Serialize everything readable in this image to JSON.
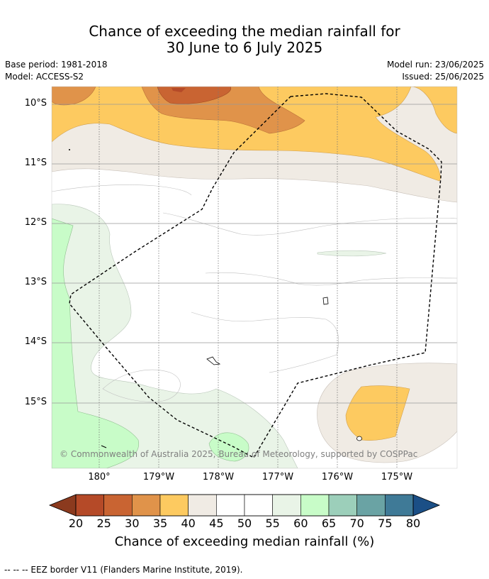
{
  "title_line1": "Chance of exceeding the median rainfall for",
  "title_line2": "30 June to 6 July 2025",
  "base_period": "Base period: 1981-2018",
  "model": "Model: ACCESS-S2",
  "model_run": "Model run: 23/06/2025",
  "issued": "Issued: 25/06/2025",
  "lat_labels": [
    "10°S",
    "11°S",
    "12°S",
    "13°S",
    "14°S",
    "15°S"
  ],
  "lon_labels": [
    "180°",
    "179°W",
    "178°W",
    "177°W",
    "176°W",
    "175°W"
  ],
  "copyright": "© Commonwealth of Australia 2025, Bureau of Meteorology, supported by COSPPac",
  "colorbar": {
    "title": "Chance of exceeding median rainfall (%)",
    "ticks": [
      "20",
      "25",
      "30",
      "35",
      "40",
      "45",
      "50",
      "55",
      "60",
      "65",
      "70",
      "75",
      "80"
    ],
    "colors": [
      "#8b3a1e",
      "#b54a28",
      "#c96432",
      "#e0934a",
      "#fdca60",
      "#f0ebe4",
      "#ffffff",
      "#ffffff",
      "#e9f4e7",
      "#c8fcc8",
      "#9ccfba",
      "#6aa3a4",
      "#3f7a97",
      "#1b4f86"
    ]
  },
  "footer": "--  --  -- EEZ border V11 (Flanders Marine Institute, 2019)."
}
